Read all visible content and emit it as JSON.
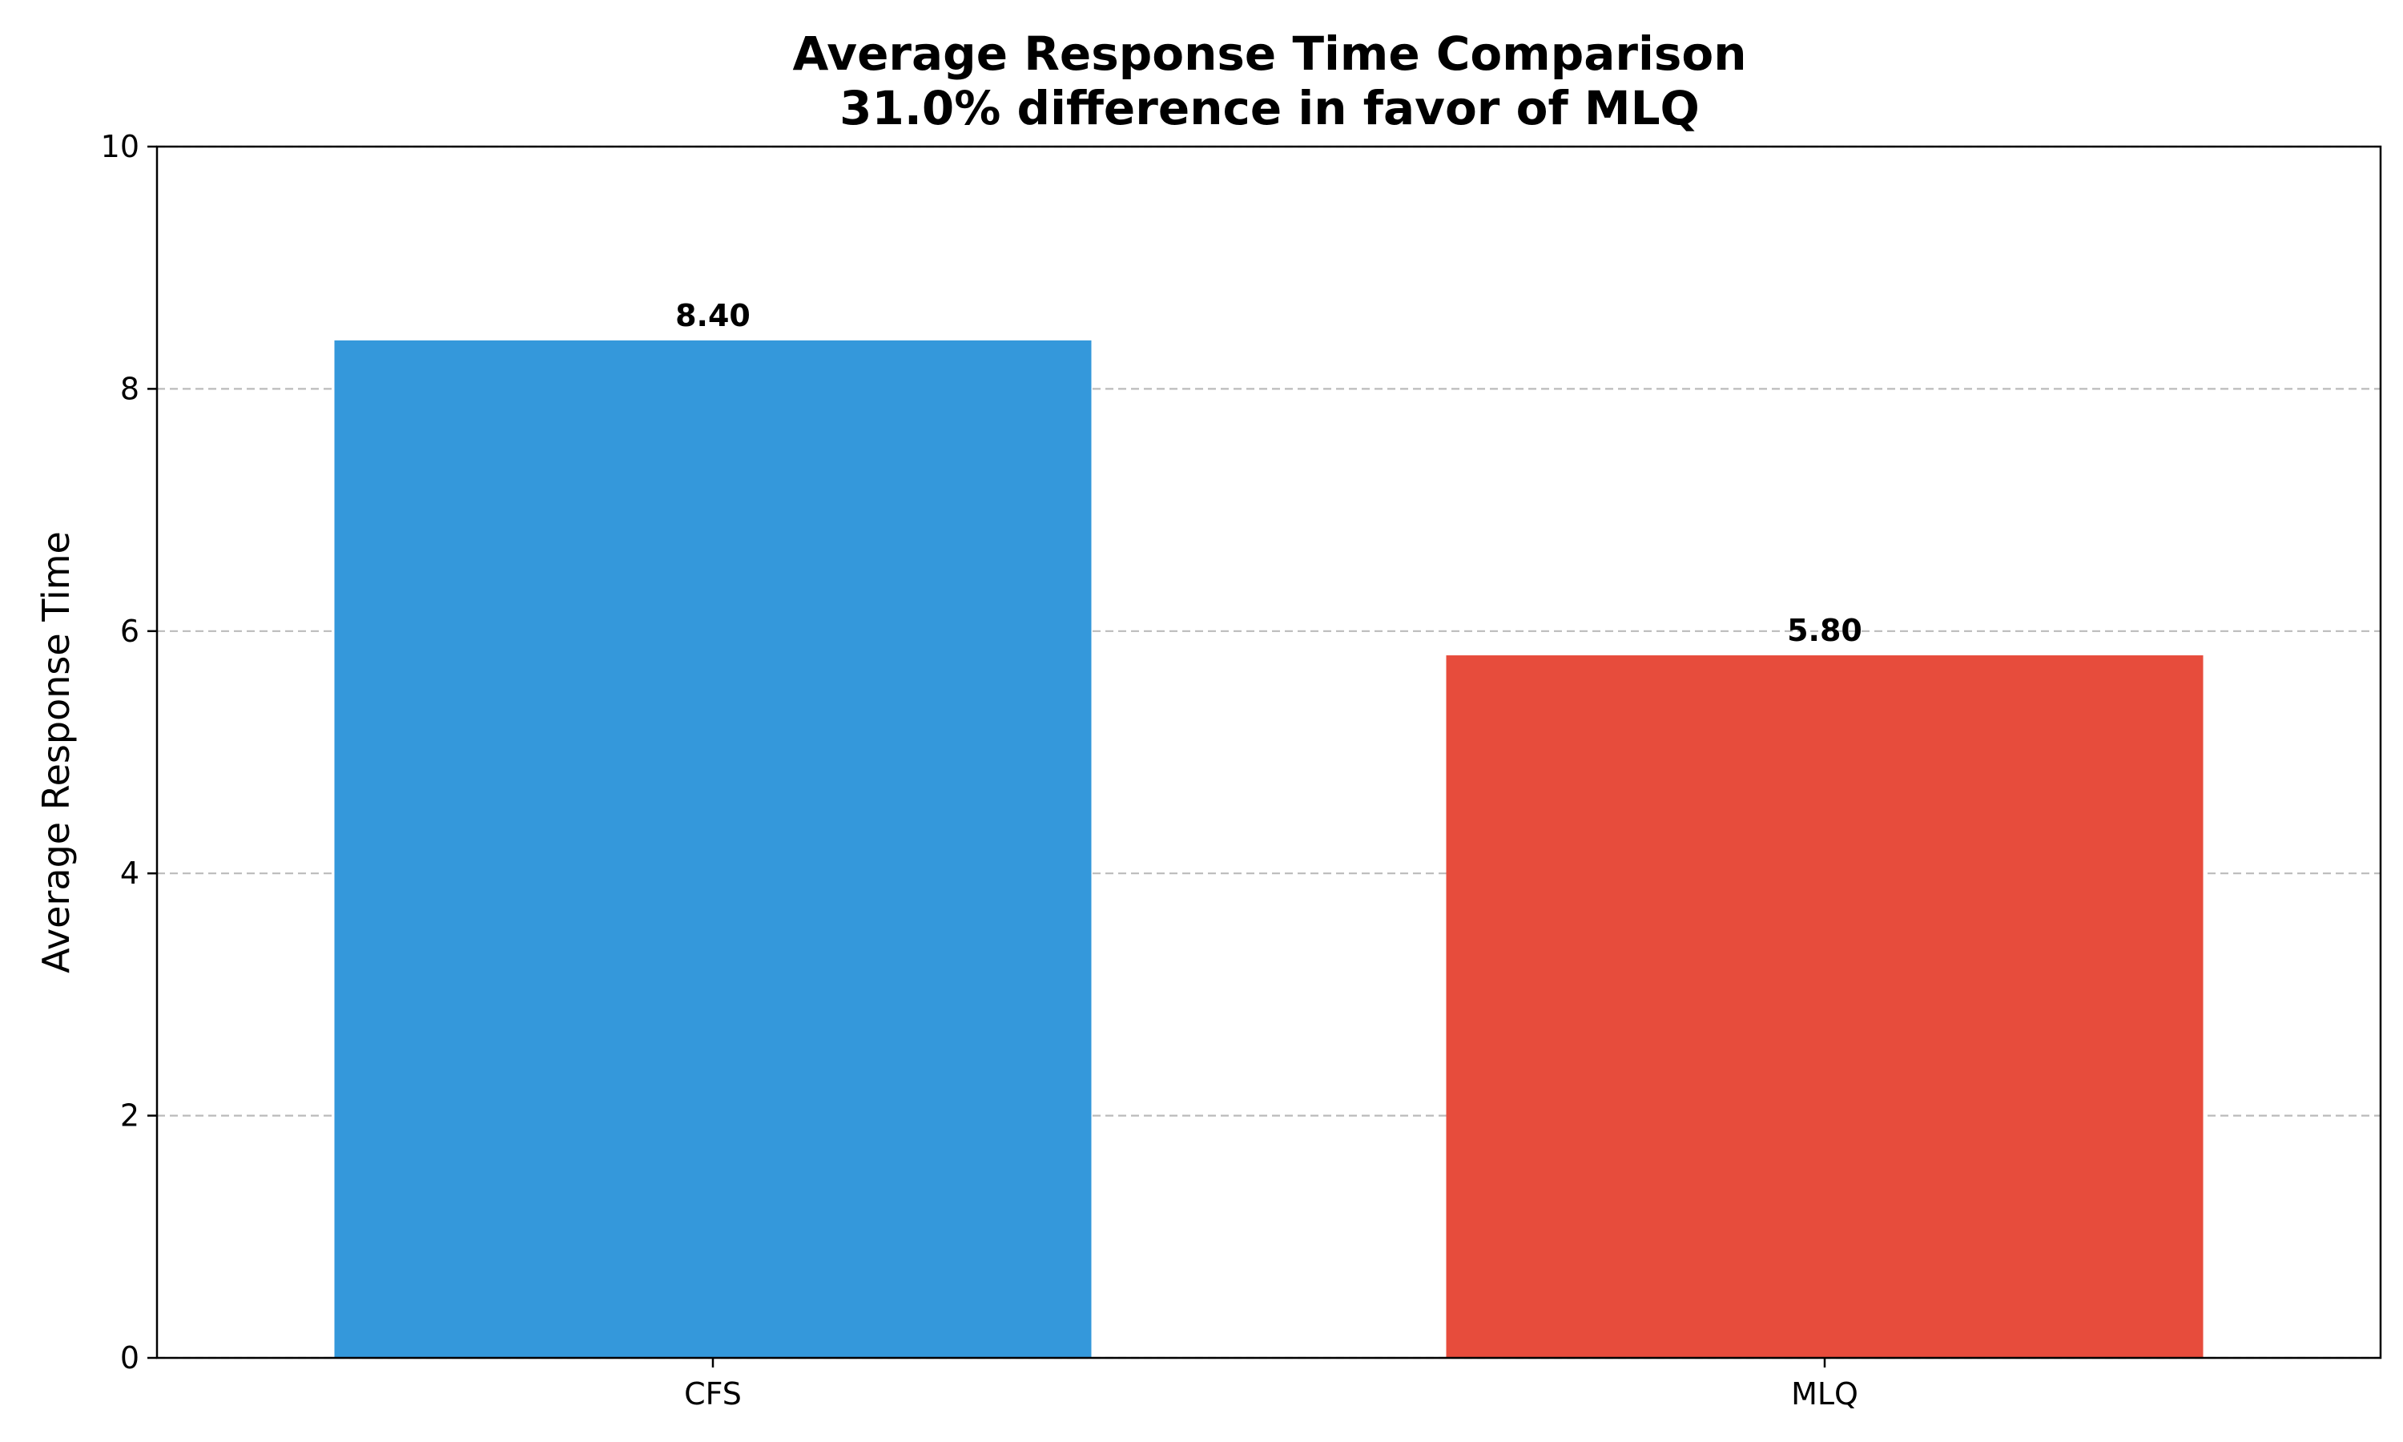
{
  "chart_data": {
    "type": "bar",
    "title_line1": "Average Response Time Comparison",
    "title_line2": "31.0% difference in favor of MLQ",
    "xlabel": "",
    "ylabel": "Average Response Time",
    "categories": [
      "CFS",
      "MLQ"
    ],
    "values": [
      8.4,
      5.8
    ],
    "value_labels": [
      "8.40",
      "5.80"
    ],
    "colors": [
      "#3498db",
      "#e74c3c"
    ],
    "ylim": [
      0,
      10
    ],
    "yticks": [
      0,
      2,
      4,
      6,
      8,
      10
    ],
    "ytick_labels": [
      "0",
      "2",
      "4",
      "6",
      "8",
      "10"
    ],
    "grid": "y-dashed",
    "legend": "none"
  }
}
